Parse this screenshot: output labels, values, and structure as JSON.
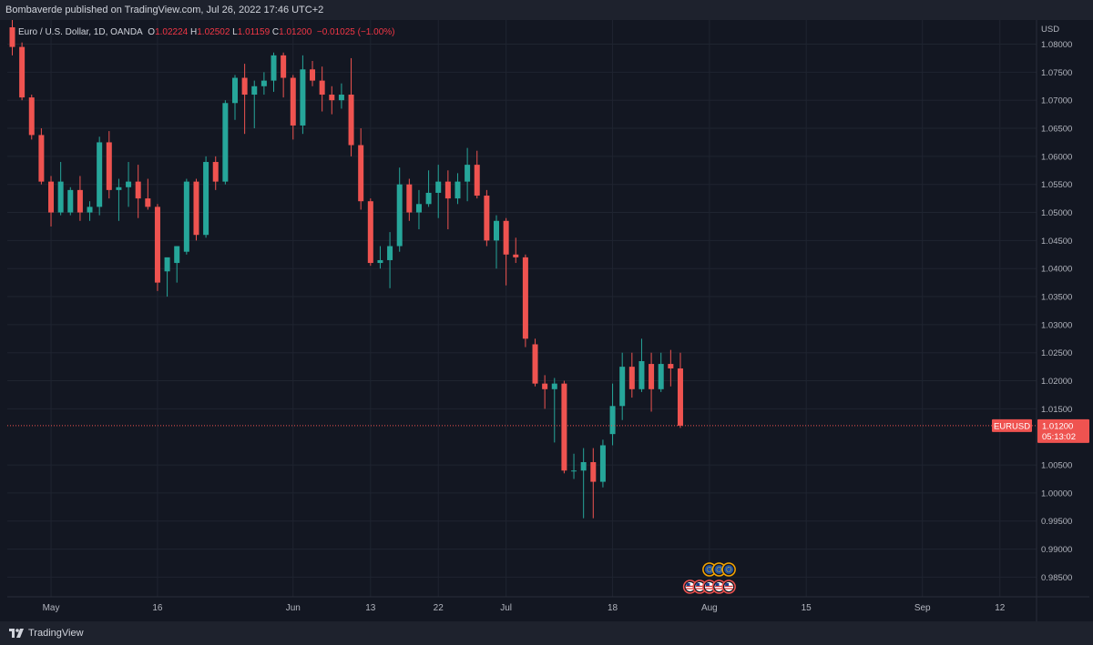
{
  "header": {
    "publisher": "Bombaverde published on TradingView.com, Jul 26, 2022 17:46 UTC+2"
  },
  "legend": {
    "symbol": "Euro / U.S. Dollar, 1D, OANDA",
    "o_label": "O",
    "o_value": "1.02224",
    "h_label": "H",
    "h_value": "1.02502",
    "l_label": "L",
    "l_value": "1.01159",
    "c_label": "C",
    "c_value": "1.01200",
    "change": "−0.01025 (−1.00%)"
  },
  "footer": {
    "brand": "TradingView"
  },
  "colors": {
    "background": "#131722",
    "up": "#26a69a",
    "down": "#ef5350",
    "grid": "#1f2430",
    "price_line": "#ef5350"
  },
  "chart_data": {
    "type": "candlestick",
    "ticker": "EURUSD",
    "currency_label": "USD",
    "last_price": "1.01200",
    "countdown": "05:13:02",
    "ylim": [
      0.9815,
      1.0843
    ],
    "y_ticks": [
      "1.08000",
      "1.07500",
      "1.07000",
      "1.06500",
      "1.06000",
      "1.05500",
      "1.05000",
      "1.04500",
      "1.04000",
      "1.03500",
      "1.03000",
      "1.02500",
      "1.02000",
      "1.01500",
      "1.00500",
      "1.00000",
      "0.99500",
      "0.99000",
      "0.98500"
    ],
    "x_ticks": [
      {
        "label": "May",
        "index": 4
      },
      {
        "label": "16",
        "index": 15
      },
      {
        "label": "Jun",
        "index": 29
      },
      {
        "label": "13",
        "index": 37
      },
      {
        "label": "22",
        "index": 44
      },
      {
        "label": "Jul",
        "index": 51
      },
      {
        "label": "18",
        "index": 62
      },
      {
        "label": "Aug",
        "index": 72
      },
      {
        "label": "15",
        "index": 82
      },
      {
        "label": "Sep",
        "index": 94
      },
      {
        "label": "12",
        "index": 102
      }
    ],
    "candles": [
      [
        1.083,
        1.0843,
        1.078,
        1.0795
      ],
      [
        1.0795,
        1.0803,
        1.07,
        1.0705
      ],
      [
        1.0705,
        1.071,
        1.063,
        1.0638
      ],
      [
        1.0638,
        1.065,
        1.055,
        1.0555
      ],
      [
        1.0555,
        1.0565,
        1.0475,
        1.05
      ],
      [
        1.05,
        1.059,
        1.0495,
        1.0555
      ],
      [
        1.05,
        1.0545,
        1.0495,
        1.054
      ],
      [
        1.054,
        1.0565,
        1.0485,
        1.05
      ],
      [
        1.05,
        1.052,
        1.0485,
        1.051
      ],
      [
        1.051,
        1.0635,
        1.0495,
        1.0625
      ],
      [
        1.0625,
        1.0645,
        1.0525,
        1.054
      ],
      [
        1.054,
        1.056,
        1.0485,
        1.0545
      ],
      [
        1.0545,
        1.059,
        1.051,
        1.0555
      ],
      [
        1.0555,
        1.0585,
        1.049,
        1.0525
      ],
      [
        1.0525,
        1.056,
        1.0505,
        1.051
      ],
      [
        1.051,
        1.0515,
        1.036,
        1.0375
      ],
      [
        1.0395,
        1.041,
        1.035,
        1.042
      ],
      [
        1.041,
        1.044,
        1.0375,
        1.044
      ],
      [
        1.043,
        1.056,
        1.0425,
        1.0555
      ],
      [
        1.0555,
        1.056,
        1.045,
        1.046
      ],
      [
        1.046,
        1.06,
        1.0455,
        1.059
      ],
      [
        1.059,
        1.06,
        1.054,
        1.0555
      ],
      [
        1.0555,
        1.07,
        1.055,
        1.0695
      ],
      [
        1.0695,
        1.0745,
        1.0665,
        1.074
      ],
      [
        1.074,
        1.0765,
        1.064,
        1.071
      ],
      [
        1.071,
        1.0735,
        1.065,
        1.0725
      ],
      [
        1.0725,
        1.075,
        1.071,
        1.0735
      ],
      [
        1.0735,
        1.0785,
        1.0715,
        1.078
      ],
      [
        1.078,
        1.0785,
        1.0705,
        1.074
      ],
      [
        1.074,
        1.0745,
        1.063,
        1.0655
      ],
      [
        1.0655,
        1.078,
        1.064,
        1.0755
      ],
      [
        1.0755,
        1.077,
        1.0725,
        1.0735
      ],
      [
        1.0735,
        1.076,
        1.068,
        1.071
      ],
      [
        1.071,
        1.0725,
        1.0675,
        1.07
      ],
      [
        1.07,
        1.073,
        1.0685,
        1.071
      ],
      [
        1.071,
        1.0775,
        1.06,
        1.062
      ],
      [
        1.062,
        1.065,
        1.0505,
        1.052
      ],
      [
        1.052,
        1.0525,
        1.0405,
        1.041
      ],
      [
        1.041,
        1.044,
        1.04,
        1.0415
      ],
      [
        1.0415,
        1.0465,
        1.0365,
        1.044
      ],
      [
        1.044,
        1.058,
        1.043,
        1.055
      ],
      [
        1.055,
        1.056,
        1.0485,
        1.05
      ],
      [
        1.05,
        1.054,
        1.047,
        1.0515
      ],
      [
        1.0515,
        1.0575,
        1.051,
        1.0535
      ],
      [
        1.0535,
        1.0585,
        1.049,
        1.0555
      ],
      [
        1.0555,
        1.0575,
        1.047,
        1.0525
      ],
      [
        1.0525,
        1.057,
        1.0515,
        1.0555
      ],
      [
        1.0555,
        1.0615,
        1.052,
        1.0585
      ],
      [
        1.0585,
        1.061,
        1.0525,
        1.053
      ],
      [
        1.053,
        1.054,
        1.044,
        1.045
      ],
      [
        1.045,
        1.0495,
        1.04,
        1.0485
      ],
      [
        1.0485,
        1.049,
        1.037,
        1.0425
      ],
      [
        1.0425,
        1.0455,
        1.041,
        1.042
      ],
      [
        1.042,
        1.0425,
        1.026,
        1.0275
      ],
      [
        1.0265,
        1.0275,
        1.019,
        1.0195
      ],
      [
        1.0195,
        1.021,
        1.015,
        1.0185
      ],
      [
        1.0185,
        1.0205,
        1.009,
        1.0195
      ],
      [
        1.0195,
        1.02,
        1.0035,
        1.004
      ],
      [
        1.004,
        1.007,
        1.0025,
        1.004
      ],
      [
        1.004,
        1.008,
        0.9955,
        1.0055
      ],
      [
        1.0055,
        1.008,
        0.9955,
        1.002
      ],
      [
        1.002,
        1.0095,
        1.001,
        1.0085
      ],
      [
        1.0105,
        1.0195,
        1.0085,
        1.0155
      ],
      [
        1.0155,
        1.025,
        1.013,
        1.0225
      ],
      [
        1.0225,
        1.025,
        1.017,
        1.0185
      ],
      [
        1.0185,
        1.0275,
        1.018,
        1.0235
      ],
      [
        1.023,
        1.025,
        1.0145,
        1.0185
      ],
      [
        1.0185,
        1.025,
        1.018,
        1.023
      ],
      [
        1.023,
        1.0255,
        1.019,
        1.0222
      ],
      [
        1.0222,
        1.025,
        1.0116,
        1.012
      ]
    ],
    "events": [
      {
        "flag": "eu",
        "index": 72,
        "row": "upper"
      },
      {
        "flag": "eu",
        "index": 73,
        "row": "upper"
      },
      {
        "flag": "eu",
        "index": 74,
        "row": "upper"
      },
      {
        "flag": "us",
        "index": 70,
        "row": "lower"
      },
      {
        "flag": "us",
        "index": 71,
        "row": "lower"
      },
      {
        "flag": "us",
        "index": 72,
        "row": "lower"
      },
      {
        "flag": "us",
        "index": 73,
        "row": "lower"
      },
      {
        "flag": "us",
        "index": 74,
        "row": "lower"
      }
    ]
  }
}
